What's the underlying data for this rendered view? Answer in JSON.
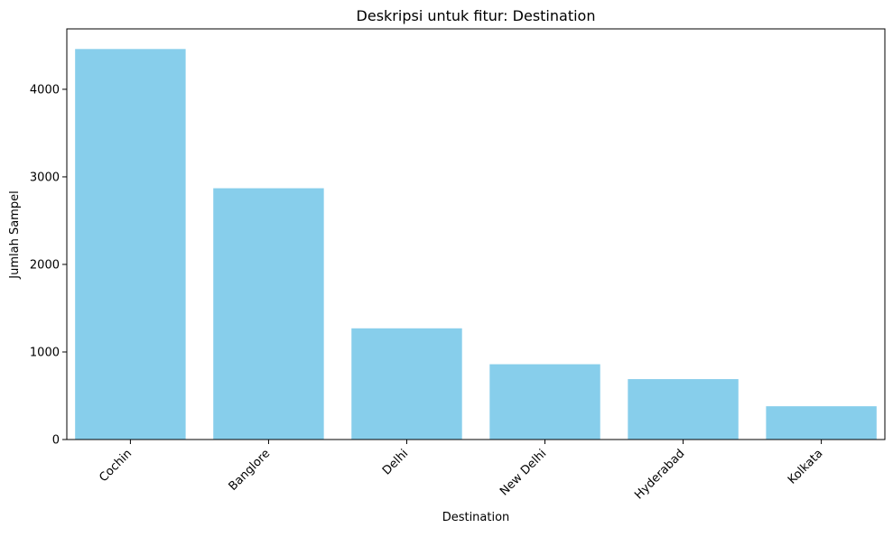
{
  "chart_data": {
    "type": "bar",
    "title": "Deskripsi untuk fitur: Destination",
    "xlabel": "Destination",
    "ylabel": "Jumlah Sampel",
    "categories": [
      "Cochin",
      "Banglore",
      "Delhi",
      "New Delhi",
      "Hyderabad",
      "Kolkata"
    ],
    "values": [
      4460,
      2870,
      1270,
      860,
      690,
      380
    ],
    "ylim": [
      0,
      4690
    ],
    "yticks": [
      0,
      1000,
      2000,
      3000,
      4000
    ],
    "grid": false,
    "legend": "none",
    "bar_color": "#87CEEB"
  }
}
